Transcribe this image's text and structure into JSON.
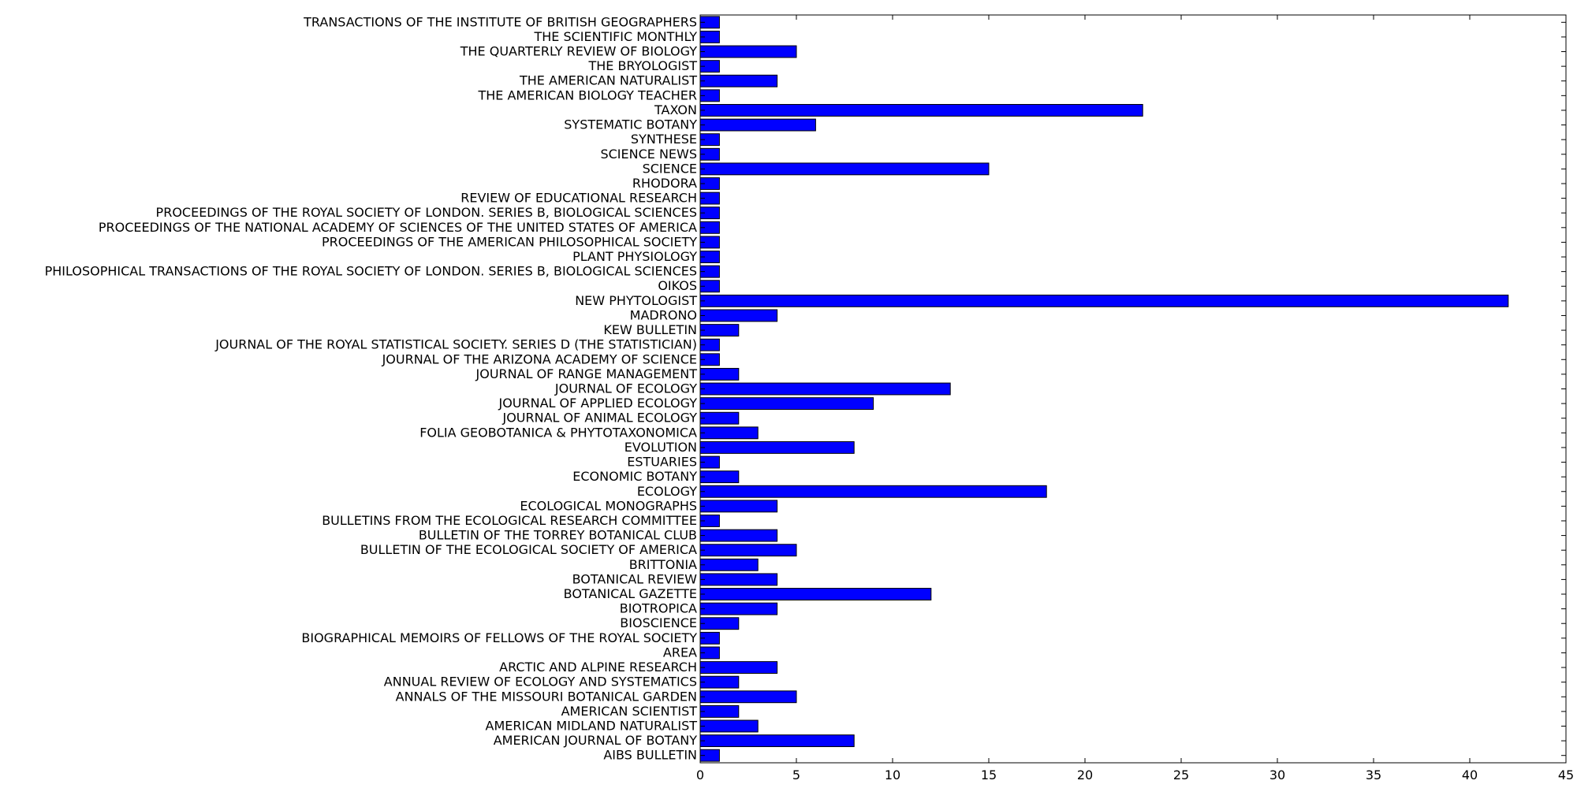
{
  "chart_data": {
    "type": "bar",
    "orientation": "horizontal",
    "title": "",
    "xlabel": "",
    "ylabel": "",
    "xlim": [
      0,
      45
    ],
    "xticks": [
      0,
      5,
      10,
      15,
      20,
      25,
      30,
      35,
      40,
      45
    ],
    "grid": false,
    "bar_color": "#0000ff",
    "categories": [
      "AIBS BULLETIN",
      "AMERICAN JOURNAL OF BOTANY",
      "AMERICAN MIDLAND NATURALIST",
      "AMERICAN SCIENTIST",
      "ANNALS OF THE MISSOURI BOTANICAL GARDEN",
      "ANNUAL REVIEW OF ECOLOGY AND SYSTEMATICS",
      "ARCTIC AND ALPINE RESEARCH",
      "AREA",
      "BIOGRAPHICAL MEMOIRS OF FELLOWS OF THE ROYAL SOCIETY",
      "BIOSCIENCE",
      "BIOTROPICA",
      "BOTANICAL GAZETTE",
      "BOTANICAL REVIEW",
      "BRITTONIA",
      "BULLETIN OF THE ECOLOGICAL SOCIETY OF AMERICA",
      "BULLETIN OF THE TORREY BOTANICAL CLUB",
      "BULLETINS FROM THE ECOLOGICAL RESEARCH COMMITTEE",
      "ECOLOGICAL MONOGRAPHS",
      "ECOLOGY",
      "ECONOMIC BOTANY",
      "ESTUARIES",
      "EVOLUTION",
      "FOLIA GEOBOTANICA & PHYTOTAXONOMICA",
      "JOURNAL OF ANIMAL ECOLOGY",
      "JOURNAL OF APPLIED ECOLOGY",
      "JOURNAL OF ECOLOGY",
      "JOURNAL OF RANGE MANAGEMENT",
      "JOURNAL OF THE ARIZONA ACADEMY OF SCIENCE",
      "JOURNAL OF THE ROYAL STATISTICAL SOCIETY. SERIES D (THE STATISTICIAN)",
      "KEW BULLETIN",
      "MADRONO",
      "NEW PHYTOLOGIST",
      "OIKOS",
      "PHILOSOPHICAL TRANSACTIONS OF THE ROYAL SOCIETY OF LONDON. SERIES B, BIOLOGICAL SCIENCES",
      "PLANT PHYSIOLOGY",
      "PROCEEDINGS OF THE AMERICAN PHILOSOPHICAL SOCIETY",
      "PROCEEDINGS OF THE NATIONAL ACADEMY OF SCIENCES OF THE UNITED STATES OF AMERICA",
      "PROCEEDINGS OF THE ROYAL SOCIETY OF LONDON. SERIES B, BIOLOGICAL SCIENCES",
      "REVIEW OF EDUCATIONAL RESEARCH",
      "RHODORA",
      "SCIENCE",
      "SCIENCE NEWS",
      "SYNTHESE",
      "SYSTEMATIC BOTANY",
      "TAXON",
      "THE AMERICAN BIOLOGY TEACHER",
      "THE AMERICAN NATURALIST",
      "THE BRYOLOGIST",
      "THE QUARTERLY REVIEW OF BIOLOGY",
      "THE SCIENTIFIC MONTHLY",
      "TRANSACTIONS OF THE INSTITUTE OF BRITISH GEOGRAPHERS"
    ],
    "values": [
      1,
      8,
      3,
      2,
      5,
      2,
      4,
      1,
      1,
      2,
      4,
      12,
      4,
      3,
      5,
      4,
      1,
      4,
      18,
      2,
      1,
      8,
      3,
      2,
      9,
      13,
      2,
      1,
      1,
      2,
      4,
      42,
      1,
      1,
      1,
      1,
      1,
      1,
      1,
      1,
      15,
      1,
      1,
      6,
      23,
      1,
      4,
      1,
      5,
      1,
      1
    ]
  }
}
